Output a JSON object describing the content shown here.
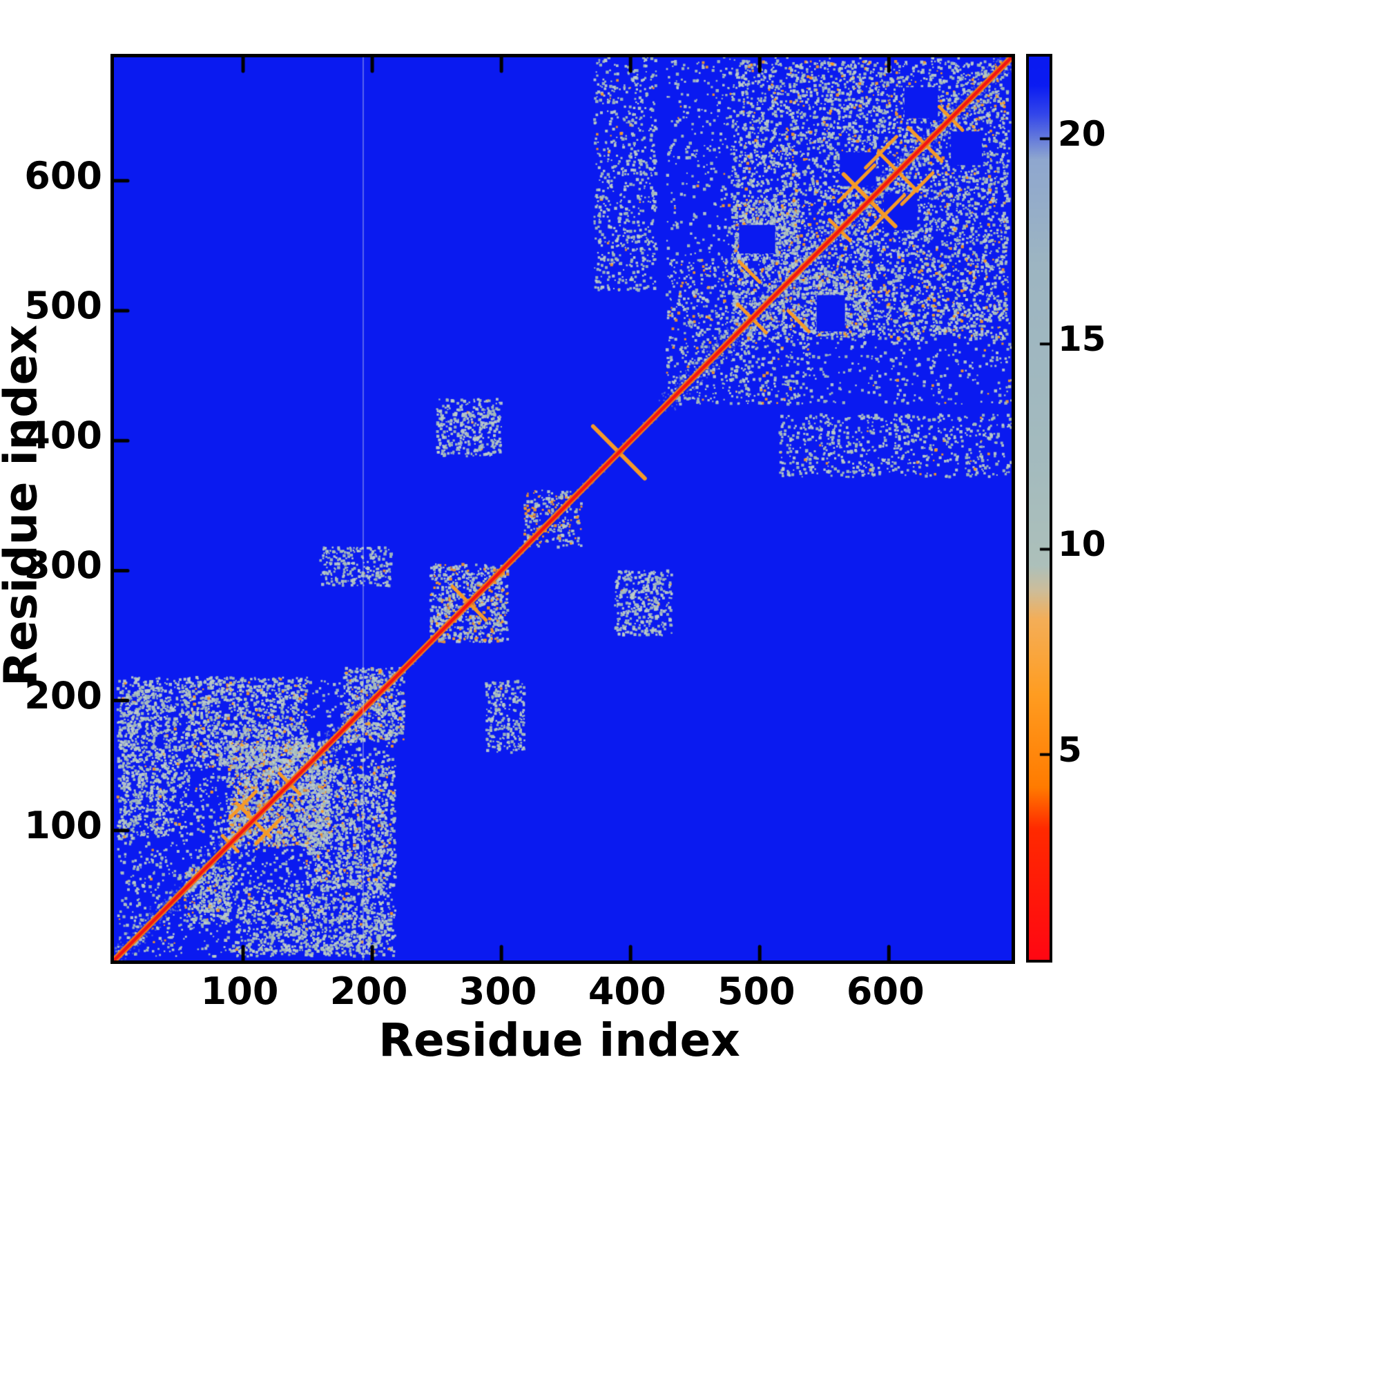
{
  "figure": {
    "kind": "protein residue-residue distance map heatmap"
  },
  "chart_data": {
    "type": "heatmap",
    "title": "",
    "xlabel": "Residue index",
    "ylabel": "Residue index",
    "x_range": [
      1,
      695
    ],
    "y_range": [
      1,
      695
    ],
    "xticks": [
      100,
      200,
      300,
      400,
      500,
      600
    ],
    "yticks": [
      100,
      200,
      300,
      400,
      500,
      600
    ],
    "value_range": [
      0,
      22
    ],
    "colorbar_ticks": [
      5,
      10,
      15,
      20
    ],
    "colorbar_orientation": "vertical-right",
    "value_meaning": "pairwise residue distance: red = small (main diagonal), orange = close contacts, gray = mid-range, blue = far",
    "symmetric": true,
    "main_diagonal": {
      "from": 1,
      "to": 695
    },
    "domains": [
      {
        "range": [
          1,
          218
        ],
        "note": "N-terminal folded domain: dense gray/orange contact cluster"
      },
      {
        "range": [
          218,
          428
        ],
        "note": "mostly extended linker: thin diagonal with local hairpin crossings near 275, 330, 352, 391"
      },
      {
        "range": [
          428,
          695
        ],
        "note": "C-terminal folded domain: dense contact cluster with woven hairpin pattern 480-690"
      }
    ],
    "features": {
      "speckle_blocks": [
        {
          "x": [
            3,
            218
          ],
          "y": [
            3,
            218
          ],
          "n": 2300,
          "orange": 0.03,
          "mirror": false
        },
        {
          "x": [
            88,
            168
          ],
          "y": [
            88,
            168
          ],
          "n": 1600,
          "orange": 0.18,
          "mirror": false
        },
        {
          "x": [
            148,
            218
          ],
          "y": [
            55,
            150
          ],
          "n": 950,
          "orange": 0.1,
          "mirror": true
        },
        {
          "x": [
            3,
            48
          ],
          "y": [
            95,
            218
          ],
          "n": 520,
          "orange": 0.02,
          "mirror": true
        },
        {
          "x": [
            95,
            215
          ],
          "y": [
            5,
            60
          ],
          "n": 360,
          "orange": 0.03,
          "mirror": true
        },
        {
          "x": [
            55,
            92
          ],
          "y": [
            30,
            72
          ],
          "n": 300,
          "orange": 0.08,
          "mirror": false
        },
        {
          "x": [
            178,
            225
          ],
          "y": [
            168,
            225
          ],
          "n": 520,
          "orange": 0.14,
          "mirror": false
        },
        {
          "x": [
            245,
            305
          ],
          "y": [
            245,
            305
          ],
          "n": 750,
          "orange": 0.15,
          "mirror": false
        },
        {
          "x": [
            250,
            300
          ],
          "y": [
            388,
            432
          ],
          "n": 360,
          "orange": 0.02,
          "mirror": true
        },
        {
          "x": [
            160,
            215
          ],
          "y": [
            288,
            318
          ],
          "n": 260,
          "orange": 0.02,
          "mirror": true
        },
        {
          "x": [
            318,
            362
          ],
          "y": [
            318,
            362
          ],
          "n": 260,
          "orange": 0.25,
          "mirror": false
        },
        {
          "x": [
            428,
            695
          ],
          "y": [
            428,
            695
          ],
          "n": 2100,
          "orange": 0.03,
          "mirror": false
        },
        {
          "x": [
            478,
            692
          ],
          "y": [
            478,
            692
          ],
          "n": 4500,
          "orange": 0.1,
          "mirror": false
        },
        {
          "x": [
            428,
            540
          ],
          "y": [
            428,
            540
          ],
          "n": 700,
          "orange": 0.13,
          "mirror": false
        },
        {
          "x": [
            372,
            420
          ],
          "y": [
            515,
            695
          ],
          "n": 680,
          "orange": 0.02,
          "mirror": true
        },
        {
          "x": [
            540,
            585
          ],
          "y": [
            480,
            530
          ],
          "n": 420,
          "orange": 0.06,
          "mirror": true
        }
      ],
      "hairpin_strokes": [
        {
          "cx": 90,
          "cy": 90,
          "len": 12,
          "anti": true,
          "mirror": false
        },
        {
          "cx": 108,
          "cy": 108,
          "len": 26,
          "anti": true,
          "mirror": false
        },
        {
          "cx": 136,
          "cy": 136,
          "len": 16,
          "anti": true,
          "mirror": false
        },
        {
          "cx": 120,
          "cy": 100,
          "len": 20,
          "anti": false,
          "mirror": true
        },
        {
          "cx": 275,
          "cy": 275,
          "len": 26,
          "anti": true,
          "mirror": false
        },
        {
          "cx": 391,
          "cy": 391,
          "len": 40,
          "anti": true,
          "mirror": false
        },
        {
          "cx": 494,
          "cy": 494,
          "len": 22,
          "anti": true,
          "mirror": false
        },
        {
          "cx": 530,
          "cy": 492,
          "len": 16,
          "anti": true,
          "mirror": true
        },
        {
          "cx": 562,
          "cy": 562,
          "len": 16,
          "anti": true,
          "mirror": false
        },
        {
          "cx": 585,
          "cy": 585,
          "len": 40,
          "anti": true,
          "mirror": false
        },
        {
          "cx": 607,
          "cy": 607,
          "len": 30,
          "anti": true,
          "mirror": false
        },
        {
          "cx": 628,
          "cy": 628,
          "len": 26,
          "anti": true,
          "mirror": false
        },
        {
          "cx": 648,
          "cy": 648,
          "len": 18,
          "anti": true,
          "mirror": false
        },
        {
          "cx": 598,
          "cy": 575,
          "len": 28,
          "anti": false,
          "mirror": true
        },
        {
          "cx": 622,
          "cy": 594,
          "len": 24,
          "anti": false,
          "mirror": true
        }
      ],
      "contact_holes": [
        {
          "x": [
            562,
            590
          ],
          "y": [
            596,
            622
          ],
          "mirror": true
        },
        {
          "x": [
            612,
            638
          ],
          "y": [
            648,
            672
          ],
          "mirror": true
        },
        {
          "x": [
            484,
            512
          ],
          "y": [
            544,
            566
          ],
          "mirror": true
        }
      ],
      "vertical_artifact_line_x": 193
    },
    "colorbar_stops": [
      [
        0,
        "#ff0713"
      ],
      [
        3.2,
        "#ff2a00"
      ],
      [
        4.2,
        "#ff7b00"
      ],
      [
        6.5,
        "#ff9d22"
      ],
      [
        8.3,
        "#f4ae58"
      ],
      [
        9.0,
        "#cdbd9a"
      ],
      [
        9.6,
        "#adc0ba"
      ],
      [
        12,
        "#a4bbbe"
      ],
      [
        17,
        "#9db5c2"
      ],
      [
        19.5,
        "#8fa7cf"
      ],
      [
        20.6,
        "#3346ea"
      ],
      [
        21.3,
        "#0b1cf2"
      ],
      [
        22,
        "#0a1af0"
      ]
    ]
  },
  "palette": {
    "background": "#ffffff",
    "field_blue": "#0a1af0",
    "speckle_gray": "#a6bcba",
    "speckle_gray_light": "#bdccc9",
    "orange": "#f59a28",
    "deep_orange": "#f07714",
    "red": "#f21414",
    "frame": "#000000",
    "artifact_line": "#cdd7ea"
  }
}
